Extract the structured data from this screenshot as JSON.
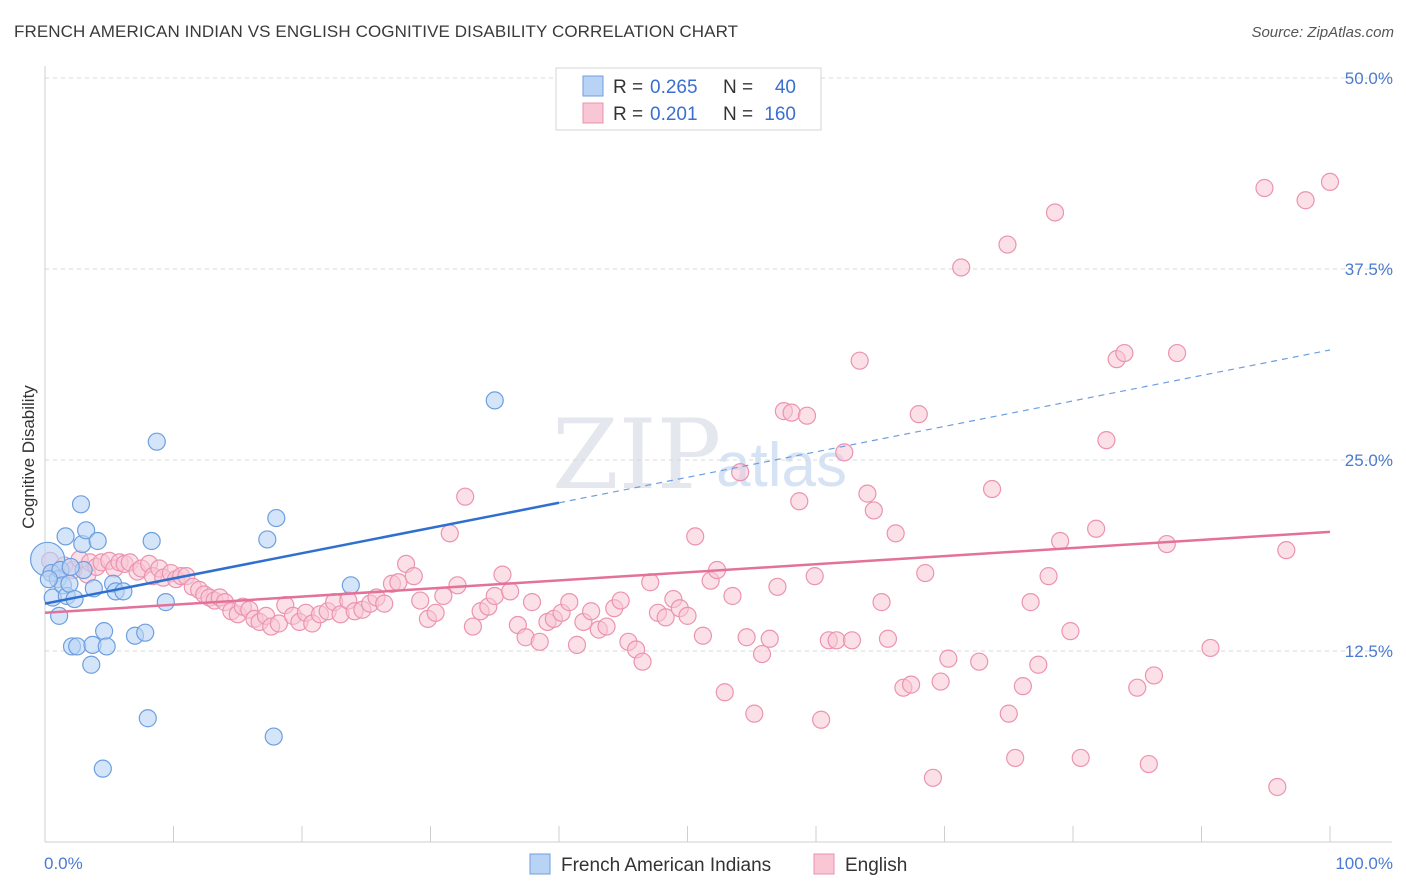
{
  "title": "FRENCH AMERICAN INDIAN VS ENGLISH COGNITIVE DISABILITY CORRELATION CHART",
  "source": "Source: ZipAtlas.com",
  "watermark": {
    "zip": "ZIP",
    "atlas": "atlas"
  },
  "colors": {
    "blue_fill": "#b9d3f5",
    "blue_stroke": "#6d9fe0",
    "blue_line": "#2f6fd0",
    "pink_fill": "#f8c6d5",
    "pink_stroke": "#ec93b0",
    "pink_line": "#e3719a",
    "tick_label": "#4a7bd0",
    "grid": "#d9d9d9"
  },
  "legend": {
    "rows": [
      {
        "r_label": "R = ",
        "r_value": "0.265",
        "n_label": "N = ",
        "n_value": "40",
        "series": "french"
      },
      {
        "r_label": "R = ",
        "r_value": "0.201",
        "n_label": "N = ",
        "n_value": "160",
        "series": "english"
      }
    ]
  },
  "bottom_legend": [
    "French American Indians",
    "English"
  ],
  "chart_data": {
    "type": "scatter",
    "title": "FRENCH AMERICAN INDIAN VS ENGLISH COGNITIVE DISABILITY CORRELATION CHART",
    "xlabel": "",
    "ylabel": "Cognitive Disability",
    "xlim": [
      0,
      100
    ],
    "ylim": [
      0,
      50
    ],
    "x_tick_labels": [
      "0.0%",
      "100.0%"
    ],
    "y_ticks": [
      12.5,
      25.0,
      37.5,
      50.0
    ],
    "y_tick_labels": [
      "12.5%",
      "25.0%",
      "37.5%",
      "50.0%"
    ],
    "grid": true,
    "legend_position": "top-center",
    "series": [
      {
        "name": "French American Indians",
        "color": "#6d9fe0",
        "trend": {
          "x0": 0,
          "y0": 15.6,
          "x1": 40,
          "y1": 22.2,
          "dashed_to_x": 100,
          "dashed_to_y": 32.2
        },
        "points": [
          [
            0.2,
            18.5
          ],
          [
            0.5,
            17.6
          ],
          [
            0.6,
            16.0
          ],
          [
            1.0,
            17.2
          ],
          [
            1.1,
            14.8
          ],
          [
            1.2,
            17.8
          ],
          [
            1.4,
            16.8
          ],
          [
            1.6,
            20.0
          ],
          [
            1.7,
            16.1
          ],
          [
            1.9,
            16.9
          ],
          [
            2.1,
            12.8
          ],
          [
            2.3,
            15.9
          ],
          [
            2.5,
            12.8
          ],
          [
            2.8,
            22.1
          ],
          [
            2.9,
            19.5
          ],
          [
            3.0,
            17.8
          ],
          [
            3.2,
            20.4
          ],
          [
            3.6,
            11.6
          ],
          [
            3.7,
            12.9
          ],
          [
            3.8,
            16.6
          ],
          [
            4.1,
            19.7
          ],
          [
            4.5,
            4.8
          ],
          [
            4.6,
            13.8
          ],
          [
            4.8,
            12.8
          ],
          [
            5.3,
            16.9
          ],
          [
            5.5,
            16.4
          ],
          [
            6.1,
            16.4
          ],
          [
            7.0,
            13.5
          ],
          [
            7.8,
            13.7
          ],
          [
            8.0,
            8.1
          ],
          [
            8.3,
            19.7
          ],
          [
            8.7,
            26.2
          ],
          [
            9.4,
            15.7
          ],
          [
            17.3,
            19.8
          ],
          [
            17.8,
            6.9
          ],
          [
            18.0,
            21.2
          ],
          [
            23.8,
            16.8
          ],
          [
            35.0,
            28.9
          ],
          [
            0.3,
            17.2
          ],
          [
            2.0,
            18.0
          ]
        ]
      },
      {
        "name": "English",
        "color": "#ec93b0",
        "trend": {
          "x0": 0,
          "y0": 15.0,
          "x1": 100,
          "y1": 20.3
        },
        "points": [
          [
            0.4,
            18.4
          ],
          [
            0.9,
            17.6
          ],
          [
            1.5,
            18.1
          ],
          [
            2.2,
            17.8
          ],
          [
            2.7,
            18.5
          ],
          [
            3.3,
            17.5
          ],
          [
            3.5,
            18.3
          ],
          [
            4.0,
            18.0
          ],
          [
            4.4,
            18.3
          ],
          [
            5.0,
            18.4
          ],
          [
            5.4,
            17.9
          ],
          [
            5.8,
            18.3
          ],
          [
            6.2,
            18.2
          ],
          [
            6.6,
            18.3
          ],
          [
            7.2,
            17.7
          ],
          [
            7.5,
            17.9
          ],
          [
            8.1,
            18.2
          ],
          [
            8.4,
            17.4
          ],
          [
            8.9,
            17.9
          ],
          [
            9.2,
            17.3
          ],
          [
            9.8,
            17.6
          ],
          [
            10.2,
            17.2
          ],
          [
            10.6,
            17.4
          ],
          [
            11.0,
            17.4
          ],
          [
            11.5,
            16.7
          ],
          [
            12.0,
            16.5
          ],
          [
            12.4,
            16.2
          ],
          [
            12.8,
            16.0
          ],
          [
            13.2,
            15.8
          ],
          [
            13.6,
            16.0
          ],
          [
            14.0,
            15.7
          ],
          [
            14.5,
            15.1
          ],
          [
            15.0,
            14.9
          ],
          [
            15.4,
            15.4
          ],
          [
            15.9,
            15.2
          ],
          [
            16.3,
            14.6
          ],
          [
            16.7,
            14.4
          ],
          [
            17.2,
            14.8
          ],
          [
            17.6,
            14.1
          ],
          [
            18.2,
            14.3
          ],
          [
            18.7,
            15.5
          ],
          [
            19.3,
            14.8
          ],
          [
            19.8,
            14.4
          ],
          [
            20.3,
            15.0
          ],
          [
            20.8,
            14.3
          ],
          [
            21.4,
            14.9
          ],
          [
            22.0,
            15.1
          ],
          [
            22.5,
            15.7
          ],
          [
            23.0,
            14.9
          ],
          [
            23.6,
            15.8
          ],
          [
            24.1,
            15.1
          ],
          [
            24.7,
            15.2
          ],
          [
            25.3,
            15.6
          ],
          [
            25.8,
            16.0
          ],
          [
            26.4,
            15.6
          ],
          [
            27.0,
            16.9
          ],
          [
            27.5,
            17.0
          ],
          [
            28.1,
            18.2
          ],
          [
            28.7,
            17.4
          ],
          [
            29.2,
            15.8
          ],
          [
            29.8,
            14.6
          ],
          [
            30.4,
            15.0
          ],
          [
            31.0,
            16.1
          ],
          [
            31.5,
            20.2
          ],
          [
            32.1,
            16.8
          ],
          [
            32.7,
            22.6
          ],
          [
            33.3,
            14.1
          ],
          [
            33.9,
            15.1
          ],
          [
            34.5,
            15.4
          ],
          [
            35.0,
            16.1
          ],
          [
            35.6,
            17.5
          ],
          [
            36.2,
            16.4
          ],
          [
            36.8,
            14.2
          ],
          [
            37.4,
            13.4
          ],
          [
            37.9,
            15.7
          ],
          [
            38.5,
            13.1
          ],
          [
            39.1,
            14.4
          ],
          [
            39.6,
            14.6
          ],
          [
            40.2,
            15.0
          ],
          [
            40.8,
            15.7
          ],
          [
            41.4,
            12.9
          ],
          [
            41.9,
            14.4
          ],
          [
            42.5,
            15.1
          ],
          [
            43.1,
            13.9
          ],
          [
            43.7,
            14.1
          ],
          [
            44.3,
            15.3
          ],
          [
            44.8,
            15.8
          ],
          [
            45.4,
            13.1
          ],
          [
            46.0,
            12.6
          ],
          [
            46.5,
            11.8
          ],
          [
            47.1,
            17.0
          ],
          [
            47.7,
            15.0
          ],
          [
            48.3,
            14.7
          ],
          [
            48.9,
            15.9
          ],
          [
            49.4,
            15.3
          ],
          [
            50.0,
            14.8
          ],
          [
            50.6,
            20.0
          ],
          [
            51.2,
            13.5
          ],
          [
            51.8,
            17.1
          ],
          [
            52.3,
            17.8
          ],
          [
            52.9,
            9.8
          ],
          [
            53.5,
            16.1
          ],
          [
            54.1,
            24.2
          ],
          [
            54.6,
            13.4
          ],
          [
            55.2,
            8.4
          ],
          [
            55.8,
            12.3
          ],
          [
            56.4,
            13.3
          ],
          [
            57.0,
            16.7
          ],
          [
            57.5,
            28.2
          ],
          [
            58.1,
            28.1
          ],
          [
            58.7,
            22.3
          ],
          [
            59.3,
            27.9
          ],
          [
            59.9,
            17.4
          ],
          [
            60.4,
            8.0
          ],
          [
            61.0,
            13.2
          ],
          [
            61.6,
            13.2
          ],
          [
            62.2,
            25.5
          ],
          [
            62.8,
            13.2
          ],
          [
            63.4,
            31.5
          ],
          [
            64.0,
            22.8
          ],
          [
            64.5,
            21.7
          ],
          [
            65.1,
            15.7
          ],
          [
            65.6,
            13.3
          ],
          [
            66.2,
            20.2
          ],
          [
            66.8,
            10.1
          ],
          [
            67.4,
            10.3
          ],
          [
            68.0,
            28.0
          ],
          [
            68.5,
            17.6
          ],
          [
            69.1,
            4.2
          ],
          [
            69.7,
            10.5
          ],
          [
            70.3,
            12.0
          ],
          [
            71.3,
            37.6
          ],
          [
            72.7,
            11.8
          ],
          [
            73.7,
            23.1
          ],
          [
            74.9,
            39.1
          ],
          [
            75.0,
            8.4
          ],
          [
            75.5,
            5.5
          ],
          [
            76.1,
            10.2
          ],
          [
            76.7,
            15.7
          ],
          [
            77.3,
            11.6
          ],
          [
            78.1,
            17.4
          ],
          [
            78.6,
            41.2
          ],
          [
            79.0,
            19.7
          ],
          [
            79.8,
            13.8
          ],
          [
            80.6,
            5.5
          ],
          [
            81.8,
            20.5
          ],
          [
            82.6,
            26.3
          ],
          [
            83.4,
            31.6
          ],
          [
            84.0,
            32.0
          ],
          [
            85.0,
            10.1
          ],
          [
            85.9,
            5.1
          ],
          [
            86.3,
            10.9
          ],
          [
            87.3,
            19.5
          ],
          [
            88.1,
            32.0
          ],
          [
            90.7,
            12.7
          ],
          [
            94.9,
            42.8
          ],
          [
            95.9,
            3.6
          ],
          [
            96.6,
            19.1
          ],
          [
            98.1,
            42.0
          ],
          [
            100.0,
            43.2
          ]
        ]
      }
    ]
  }
}
